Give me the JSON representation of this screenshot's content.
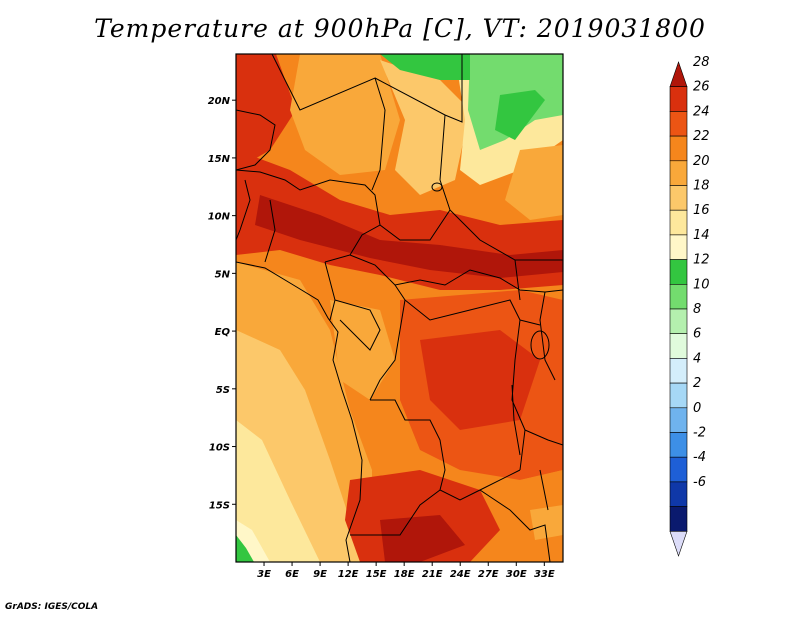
{
  "title": "Temperature at 900hPa [C], VT: 2019031800",
  "footer": "GrADS: IGES/COLA",
  "map": {
    "projection": "lat-lon",
    "lon_range": [
      0,
      35
    ],
    "lat_range": [
      -20,
      24
    ],
    "lat_ticks": [
      {
        "value": 20,
        "label": "20N"
      },
      {
        "value": 15,
        "label": "15N"
      },
      {
        "value": 10,
        "label": "10N"
      },
      {
        "value": 5,
        "label": "5N"
      },
      {
        "value": 0,
        "label": "EQ"
      },
      {
        "value": -5,
        "label": "5S"
      },
      {
        "value": -10,
        "label": "10S"
      },
      {
        "value": -15,
        "label": "15S"
      }
    ],
    "lon_ticks": [
      {
        "value": 3,
        "label": "3E"
      },
      {
        "value": 6,
        "label": "6E"
      },
      {
        "value": 9,
        "label": "9E"
      },
      {
        "value": 12,
        "label": "12E"
      },
      {
        "value": 15,
        "label": "15E"
      },
      {
        "value": 18,
        "label": "18E"
      },
      {
        "value": 21,
        "label": "21E"
      },
      {
        "value": 24,
        "label": "24E"
      },
      {
        "value": 27,
        "label": "27E"
      },
      {
        "value": 30,
        "label": "30E"
      },
      {
        "value": 33,
        "label": "33E"
      }
    ]
  },
  "colorbar": {
    "labels": [
      "28",
      "26",
      "24",
      "22",
      "20",
      "18",
      "16",
      "14",
      "12",
      "10",
      "8",
      "6",
      "4",
      "2",
      "0",
      "-2",
      "-4",
      "-6"
    ],
    "colors": [
      "#b0160a",
      "#d9300e",
      "#ec5514",
      "#f5861c",
      "#f9a83a",
      "#fcc86a",
      "#fde89c",
      "#fff7c8",
      "#33c640",
      "#73dc6e",
      "#b4f0ae",
      "#e0fbdc",
      "#d4eefb",
      "#a6d8f6",
      "#6fb3ee",
      "#3d8fe6",
      "#1e5fd6",
      "#0f38a8",
      "#0a1a6e",
      "#dcdcf8"
    ]
  }
}
